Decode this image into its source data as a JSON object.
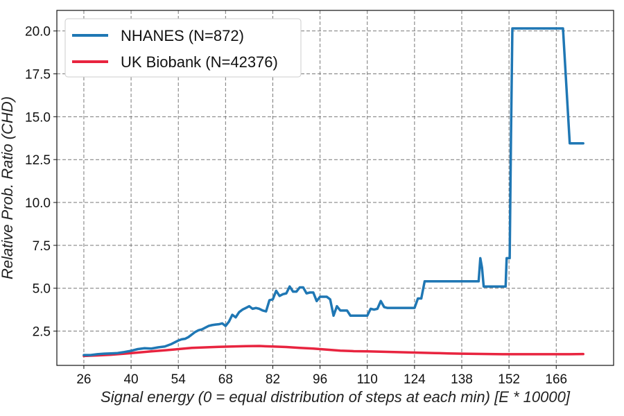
{
  "chart_data": {
    "type": "line",
    "title": "",
    "xlabel": "Signal energy (0 = equal distribution of steps at each min) [E * 10000]",
    "ylabel": "Relative Prob. Ratio (CHD)",
    "xlim": [
      18,
      183
    ],
    "ylim": [
      0.5,
      21.2
    ],
    "xticks": [
      26,
      40,
      54,
      68,
      82,
      96,
      110,
      124,
      138,
      152,
      166
    ],
    "yticks": [
      2.5,
      5.0,
      7.5,
      10.0,
      12.5,
      15.0,
      17.5,
      20.0
    ],
    "ytick_labels": [
      "2.5",
      "5.0",
      "7.5",
      "10.0",
      "12.5",
      "15.0",
      "17.5",
      "20.0"
    ],
    "grid": true,
    "legend_position": "top-left",
    "series": [
      {
        "name": "NHANES (N=872)",
        "color": "#1f77b4",
        "x": [
          26,
          28,
          30,
          32,
          34,
          36,
          38,
          40,
          42,
          44,
          46,
          48,
          50,
          52,
          54,
          55,
          56,
          57,
          58,
          59,
          60,
          61,
          62,
          63,
          64,
          65,
          66,
          67,
          68,
          69,
          70,
          71,
          72,
          73,
          74,
          75,
          76,
          77,
          78,
          79,
          80,
          81,
          82,
          83,
          84,
          85,
          86,
          87,
          88,
          89,
          90,
          91,
          92,
          93,
          94,
          95,
          96,
          97,
          98,
          99,
          100,
          101,
          102,
          103,
          104,
          105,
          106,
          107,
          108,
          109,
          110,
          111,
          112,
          113,
          114,
          115,
          116,
          117,
          118,
          119,
          120,
          121,
          122,
          123,
          124,
          125,
          126,
          127,
          128,
          130,
          132,
          134,
          136,
          138,
          140,
          142,
          143,
          143.5,
          144,
          144.5,
          145,
          146,
          148,
          150,
          151,
          151.3,
          151.8,
          152.2,
          152.6,
          153,
          155,
          158,
          162,
          166,
          167,
          168,
          170,
          173,
          174
        ],
        "values": [
          1.1,
          1.1,
          1.15,
          1.18,
          1.2,
          1.22,
          1.28,
          1.35,
          1.45,
          1.5,
          1.48,
          1.55,
          1.6,
          1.75,
          1.95,
          2.02,
          2.05,
          2.15,
          2.3,
          2.45,
          2.55,
          2.6,
          2.7,
          2.8,
          2.85,
          2.88,
          2.9,
          2.95,
          2.8,
          3.05,
          3.45,
          3.3,
          3.6,
          3.75,
          3.85,
          3.95,
          3.8,
          3.85,
          3.8,
          3.7,
          3.65,
          4.3,
          4.35,
          4.85,
          4.55,
          4.65,
          4.7,
          5.1,
          4.8,
          4.8,
          5.05,
          5.05,
          4.7,
          4.75,
          4.75,
          4.25,
          4.5,
          4.5,
          4.5,
          4.35,
          3.4,
          3.95,
          3.7,
          3.7,
          3.7,
          3.4,
          3.4,
          3.4,
          3.4,
          3.4,
          3.4,
          3.8,
          3.75,
          3.8,
          4.25,
          3.9,
          3.85,
          3.85,
          3.85,
          3.85,
          3.85,
          3.85,
          3.85,
          3.85,
          3.85,
          4.4,
          4.4,
          5.4,
          5.4,
          5.4,
          5.4,
          5.4,
          5.4,
          5.4,
          5.4,
          5.4,
          5.4,
          6.75,
          6.2,
          5.1,
          5.1,
          5.1,
          5.1,
          5.1,
          5.1,
          6.75,
          6.75,
          6.75,
          14.0,
          20.15,
          20.15,
          20.15,
          20.15,
          20.15,
          20.15,
          20.15,
          13.45,
          13.45,
          13.45
        ]
      },
      {
        "name": "UK Biobank (N=42376)",
        "color": "#e8243f",
        "x": [
          26,
          30,
          34,
          38,
          42,
          46,
          50,
          54,
          58,
          62,
          66,
          70,
          74,
          78,
          82,
          86,
          90,
          94,
          98,
          102,
          106,
          110,
          114,
          118,
          122,
          126,
          130,
          134,
          138,
          142,
          146,
          150,
          154,
          158,
          162,
          166,
          170,
          174
        ],
        "values": [
          1.05,
          1.08,
          1.12,
          1.18,
          1.25,
          1.32,
          1.38,
          1.45,
          1.52,
          1.55,
          1.58,
          1.6,
          1.62,
          1.63,
          1.6,
          1.57,
          1.52,
          1.48,
          1.42,
          1.36,
          1.33,
          1.32,
          1.3,
          1.28,
          1.26,
          1.24,
          1.22,
          1.2,
          1.18,
          1.17,
          1.16,
          1.15,
          1.15,
          1.15,
          1.15,
          1.15,
          1.15,
          1.16
        ]
      }
    ]
  }
}
